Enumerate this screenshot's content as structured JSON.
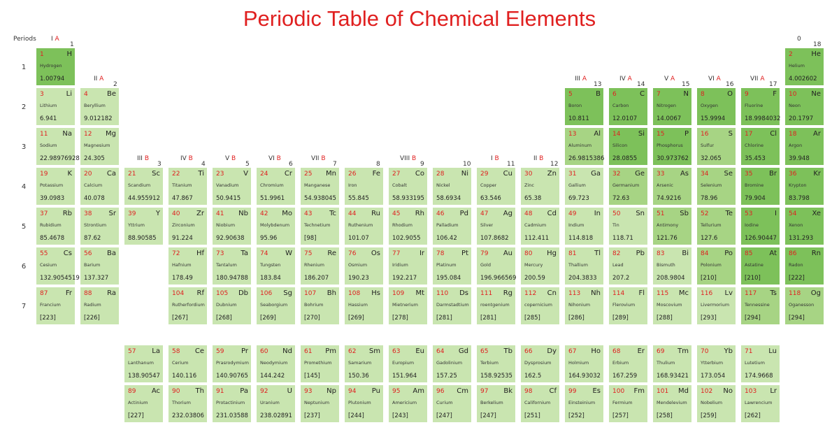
{
  "title": "Periodic Table of Chemical Elements",
  "periods_label": "Periods",
  "colors": {
    "light": "#c9e5b0",
    "medium": "#a7d484",
    "dark": "#7dc15a",
    "title": "#e02020"
  },
  "group_labels": [
    {
      "roman": "I",
      "suffix": "A",
      "number": "1"
    },
    {
      "roman": "II",
      "suffix": "A",
      "number": "2"
    },
    {
      "roman": "III",
      "suffix": "B",
      "number": "3"
    },
    {
      "roman": "IV",
      "suffix": "B",
      "number": "4"
    },
    {
      "roman": "V",
      "suffix": "B",
      "number": "5"
    },
    {
      "roman": "VI",
      "suffix": "B",
      "number": "6"
    },
    {
      "roman": "VII",
      "suffix": "B",
      "number": "7"
    },
    {
      "roman": "",
      "suffix": "",
      "number": "8"
    },
    {
      "roman": "VIII",
      "suffix": "B",
      "number": "9"
    },
    {
      "roman": "",
      "suffix": "",
      "number": "10"
    },
    {
      "roman": "I",
      "suffix": "B",
      "number": "11"
    },
    {
      "roman": "II",
      "suffix": "B",
      "number": "12"
    },
    {
      "roman": "III",
      "suffix": "A",
      "number": "13"
    },
    {
      "roman": "IV",
      "suffix": "A",
      "number": "14"
    },
    {
      "roman": "V",
      "suffix": "A",
      "number": "15"
    },
    {
      "roman": "VI",
      "suffix": "A",
      "number": "16"
    },
    {
      "roman": "VII",
      "suffix": "A",
      "number": "17"
    },
    {
      "roman": "0",
      "suffix": "",
      "number": "18"
    }
  ],
  "periods": [
    "1",
    "2",
    "3",
    "4",
    "5",
    "6",
    "7"
  ],
  "elements": [
    {
      "z": "1",
      "sym": "H",
      "name": "Hydrogen",
      "mass": "1.00794",
      "shade": "dark"
    },
    {
      "z": "2",
      "sym": "He",
      "name": "Helium",
      "mass": "4.002602",
      "shade": "dark"
    },
    {
      "z": "3",
      "sym": "Li",
      "name": "Lithium",
      "mass": "6.941",
      "shade": "light"
    },
    {
      "z": "4",
      "sym": "Be",
      "name": "Beryllium",
      "mass": "9.012182",
      "shade": "light"
    },
    {
      "z": "5",
      "sym": "B",
      "name": "Boron",
      "mass": "10.811",
      "shade": "dark"
    },
    {
      "z": "6",
      "sym": "C",
      "name": "Carbon",
      "mass": "12.0107",
      "shade": "dark"
    },
    {
      "z": "7",
      "sym": "N",
      "name": "Nitrogen",
      "mass": "14.0067",
      "shade": "dark"
    },
    {
      "z": "8",
      "sym": "O",
      "name": "Oxygen",
      "mass": "15.9994",
      "shade": "dark"
    },
    {
      "z": "9",
      "sym": "F",
      "name": "Fluorine",
      "mass": "18.9984032",
      "shade": "dark"
    },
    {
      "z": "10",
      "sym": "Ne",
      "name": "Neon",
      "mass": "20.1797",
      "shade": "dark"
    },
    {
      "z": "11",
      "sym": "Na",
      "name": "Sodium",
      "mass": "22.98976928",
      "shade": "light"
    },
    {
      "z": "12",
      "sym": "Mg",
      "name": "Magnesium",
      "mass": "24.305",
      "shade": "light"
    },
    {
      "z": "13",
      "sym": "Al",
      "name": "Aluminum",
      "mass": "26.9815386",
      "shade": "medium"
    },
    {
      "z": "14",
      "sym": "Si",
      "name": "Silicon",
      "mass": "28.0855",
      "shade": "dark"
    },
    {
      "z": "15",
      "sym": "P",
      "name": "Phosphorus",
      "mass": "30.973762",
      "shade": "dark"
    },
    {
      "z": "16",
      "sym": "S",
      "name": "Sulfur",
      "mass": "32.065",
      "shade": "medium"
    },
    {
      "z": "17",
      "sym": "Cl",
      "name": "Chlorine",
      "mass": "35.453",
      "shade": "dark"
    },
    {
      "z": "18",
      "sym": "Ar",
      "name": "Argon",
      "mass": "39.948",
      "shade": "dark"
    },
    {
      "z": "19",
      "sym": "K",
      "name": "Potassium",
      "mass": "39.0983",
      "shade": "light"
    },
    {
      "z": "20",
      "sym": "Ca",
      "name": "Calcium",
      "mass": "40.078",
      "shade": "light"
    },
    {
      "z": "21",
      "sym": "Sc",
      "name": "Scandium",
      "mass": "44.955912",
      "shade": "light"
    },
    {
      "z": "22",
      "sym": "Ti",
      "name": "Titanium",
      "mass": "47.867",
      "shade": "light"
    },
    {
      "z": "23",
      "sym": "V",
      "name": "Vanadium",
      "mass": "50.9415",
      "shade": "light"
    },
    {
      "z": "24",
      "sym": "Cr",
      "name": "Chromium",
      "mass": "51.9961",
      "shade": "light"
    },
    {
      "z": "25",
      "sym": "Mn",
      "name": "Manganese",
      "mass": "54.938045",
      "shade": "light"
    },
    {
      "z": "26",
      "sym": "Fe",
      "name": "Iron",
      "mass": "55.845",
      "shade": "light"
    },
    {
      "z": "27",
      "sym": "Co",
      "name": "Cobalt",
      "mass": "58.933195",
      "shade": "light"
    },
    {
      "z": "28",
      "sym": "Ni",
      "name": "Nickel",
      "mass": "58.6934",
      "shade": "light"
    },
    {
      "z": "29",
      "sym": "Cu",
      "name": "Copper",
      "mass": "63.546",
      "shade": "light"
    },
    {
      "z": "30",
      "sym": "Zn",
      "name": "Zinc",
      "mass": "65.38",
      "shade": "light"
    },
    {
      "z": "31",
      "sym": "Ga",
      "name": "Gallium",
      "mass": "69.723",
      "shade": "light"
    },
    {
      "z": "32",
      "sym": "Ge",
      "name": "Germanium",
      "mass": "72.63",
      "shade": "medium"
    },
    {
      "z": "33",
      "sym": "As",
      "name": "Arsenic",
      "mass": "74.9216",
      "shade": "medium"
    },
    {
      "z": "34",
      "sym": "Se",
      "name": "Selenium",
      "mass": "78.96",
      "shade": "medium"
    },
    {
      "z": "35",
      "sym": "Br",
      "name": "Bromine",
      "mass": "79.904",
      "shade": "dark"
    },
    {
      "z": "36",
      "sym": "Kr",
      "name": "Krypton",
      "mass": "83.798",
      "shade": "dark"
    },
    {
      "z": "37",
      "sym": "Rb",
      "name": "Rubidium",
      "mass": "85.4678",
      "shade": "light"
    },
    {
      "z": "38",
      "sym": "Sr",
      "name": "Strontium",
      "mass": "87.62",
      "shade": "light"
    },
    {
      "z": "39",
      "sym": "Y",
      "name": "Yttrium",
      "mass": "88.90585",
      "shade": "light"
    },
    {
      "z": "40",
      "sym": "Zr",
      "name": "Zirconium",
      "mass": "91.224",
      "shade": "light"
    },
    {
      "z": "41",
      "sym": "Nb",
      "name": "Niobium",
      "mass": "92.90638",
      "shade": "light"
    },
    {
      "z": "42",
      "sym": "Mo",
      "name": "Molybdenum",
      "mass": "95.96",
      "shade": "light"
    },
    {
      "z": "43",
      "sym": "Tc",
      "name": "Technetium",
      "mass": "[98]",
      "shade": "light"
    },
    {
      "z": "44",
      "sym": "Ru",
      "name": "Ruthenium",
      "mass": "101.07",
      "shade": "light"
    },
    {
      "z": "45",
      "sym": "Rh",
      "name": "Rhodium",
      "mass": "102.9055",
      "shade": "light"
    },
    {
      "z": "46",
      "sym": "Pd",
      "name": "Palladium",
      "mass": "106.42",
      "shade": "light"
    },
    {
      "z": "47",
      "sym": "Ag",
      "name": "Silver",
      "mass": "107.8682",
      "shade": "light"
    },
    {
      "z": "48",
      "sym": "Cd",
      "name": "Cadmium",
      "mass": "112.411",
      "shade": "light"
    },
    {
      "z": "49",
      "sym": "In",
      "name": "Indium",
      "mass": "114.818",
      "shade": "light"
    },
    {
      "z": "50",
      "sym": "Sn",
      "name": "Tin",
      "mass": "118.71",
      "shade": "light"
    },
    {
      "z": "51",
      "sym": "Sb",
      "name": "Antimony",
      "mass": "121.76",
      "shade": "medium"
    },
    {
      "z": "52",
      "sym": "Te",
      "name": "Tellurium",
      "mass": "127.6",
      "shade": "medium"
    },
    {
      "z": "53",
      "sym": "I",
      "name": "Iodine",
      "mass": "126.90447",
      "shade": "dark"
    },
    {
      "z": "54",
      "sym": "Xe",
      "name": "Xenon",
      "mass": "131.293",
      "shade": "dark"
    },
    {
      "z": "55",
      "sym": "Cs",
      "name": "Cesium",
      "mass": "132.9054519",
      "shade": "light"
    },
    {
      "z": "56",
      "sym": "Ba",
      "name": "Barium",
      "mass": "137.327",
      "shade": "light"
    },
    {
      "z": "72",
      "sym": "Hf",
      "name": "Hafnium",
      "mass": "178.49",
      "shade": "light"
    },
    {
      "z": "73",
      "sym": "Ta",
      "name": "Tantalum",
      "mass": "180.94788",
      "shade": "light"
    },
    {
      "z": "74",
      "sym": "W",
      "name": "Tungsten",
      "mass": "183.84",
      "shade": "light"
    },
    {
      "z": "75",
      "sym": "Re",
      "name": "Rhenium",
      "mass": "186.207",
      "shade": "light"
    },
    {
      "z": "76",
      "sym": "Os",
      "name": "Osmium",
      "mass": "190.23",
      "shade": "light"
    },
    {
      "z": "77",
      "sym": "Ir",
      "name": "Iridium",
      "mass": "192.217",
      "shade": "light"
    },
    {
      "z": "78",
      "sym": "Pt",
      "name": "Platinum",
      "mass": "195.084",
      "shade": "light"
    },
    {
      "z": "79",
      "sym": "Au",
      "name": "Gold",
      "mass": "196.966569",
      "shade": "light"
    },
    {
      "z": "80",
      "sym": "Hg",
      "name": "Mercury",
      "mass": "200.59",
      "shade": "light"
    },
    {
      "z": "81",
      "sym": "Tl",
      "name": "Thallium",
      "mass": "204.3833",
      "shade": "light"
    },
    {
      "z": "82",
      "sym": "Pb",
      "name": "Lead",
      "mass": "207.2",
      "shade": "light"
    },
    {
      "z": "83",
      "sym": "Bi",
      "name": "Bismuth",
      "mass": "208.9804",
      "shade": "light"
    },
    {
      "z": "84",
      "sym": "Po",
      "name": "Polonium",
      "mass": "[210]",
      "shade": "medium"
    },
    {
      "z": "85",
      "sym": "At",
      "name": "Astatine",
      "mass": "[210]",
      "shade": "dark"
    },
    {
      "z": "86",
      "sym": "Rn",
      "name": "Radon",
      "mass": "[222]",
      "shade": "dark"
    },
    {
      "z": "87",
      "sym": "Fr",
      "name": "Francium",
      "mass": "[223]",
      "shade": "light"
    },
    {
      "z": "88",
      "sym": "Ra",
      "name": "Radium",
      "mass": "[226]",
      "shade": "light"
    },
    {
      "z": "104",
      "sym": "Rf",
      "name": "Rutherfordium",
      "mass": "[267]",
      "shade": "light"
    },
    {
      "z": "105",
      "sym": "Db",
      "name": "Dubnium",
      "mass": "[268]",
      "shade": "light"
    },
    {
      "z": "106",
      "sym": "Sg",
      "name": "Seaborgium",
      "mass": "[269]",
      "shade": "light"
    },
    {
      "z": "107",
      "sym": "Bh",
      "name": "Bohrium",
      "mass": "[270]",
      "shade": "light"
    },
    {
      "z": "108",
      "sym": "Hs",
      "name": "Hassium",
      "mass": "[269]",
      "shade": "light"
    },
    {
      "z": "109",
      "sym": "Mt",
      "name": "Mietnerium",
      "mass": "[278]",
      "shade": "light"
    },
    {
      "z": "110",
      "sym": "Ds",
      "name": "Darmstadtium",
      "mass": "[281]",
      "shade": "light"
    },
    {
      "z": "111",
      "sym": "Rg",
      "name": "roentgenium",
      "mass": "[281]",
      "shade": "light"
    },
    {
      "z": "112",
      "sym": "Cn",
      "name": "copernicium",
      "mass": "[285]",
      "shade": "light"
    },
    {
      "z": "113",
      "sym": "Nh",
      "name": "Nihonium",
      "mass": "[286]",
      "shade": "light"
    },
    {
      "z": "114",
      "sym": "Fl",
      "name": "Flerovium",
      "mass": "[289]",
      "shade": "light"
    },
    {
      "z": "115",
      "sym": "Mc",
      "name": "Moscovium",
      "mass": "[288]",
      "shade": "light"
    },
    {
      "z": "116",
      "sym": "Lv",
      "name": "Livermorium",
      "mass": "[293]",
      "shade": "light"
    },
    {
      "z": "117",
      "sym": "Ts",
      "name": "Tennessine",
      "mass": "[294]",
      "shade": "medium"
    },
    {
      "z": "118",
      "sym": "Og",
      "name": "Oganesson",
      "mass": "[294]",
      "shade": "medium"
    },
    {
      "z": "57",
      "sym": "La",
      "name": "Lanthanum",
      "mass": "138.90547",
      "shade": "light"
    },
    {
      "z": "58",
      "sym": "Ce",
      "name": "Cerium",
      "mass": "140.116",
      "shade": "light"
    },
    {
      "z": "59",
      "sym": "Pr",
      "name": "Prasrodymium",
      "mass": "140.90765",
      "shade": "light"
    },
    {
      "z": "60",
      "sym": "Nd",
      "name": "Neodymium",
      "mass": "144.242",
      "shade": "light"
    },
    {
      "z": "61",
      "sym": "Pm",
      "name": "Promethium",
      "mass": "[145]",
      "shade": "light"
    },
    {
      "z": "62",
      "sym": "Sm",
      "name": "Samarium",
      "mass": "150.36",
      "shade": "light"
    },
    {
      "z": "63",
      "sym": "Eu",
      "name": "Europium",
      "mass": "151.964",
      "shade": "light"
    },
    {
      "z": "64",
      "sym": "Gd",
      "name": "Gadolinium",
      "mass": "157.25",
      "shade": "light"
    },
    {
      "z": "65",
      "sym": "Tb",
      "name": "Terbium",
      "mass": "158.92535",
      "shade": "light"
    },
    {
      "z": "66",
      "sym": "Dy",
      "name": "Dysprosium",
      "mass": "162.5",
      "shade": "light"
    },
    {
      "z": "67",
      "sym": "Ho",
      "name": "Holmium",
      "mass": "164.93032",
      "shade": "light"
    },
    {
      "z": "68",
      "sym": "Er",
      "name": "Erbium",
      "mass": "167.259",
      "shade": "light"
    },
    {
      "z": "69",
      "sym": "Tm",
      "name": "Thulium",
      "mass": "168.93421",
      "shade": "light"
    },
    {
      "z": "70",
      "sym": "Yb",
      "name": "Ytterbium",
      "mass": "173.054",
      "shade": "light"
    },
    {
      "z": "71",
      "sym": "Lu",
      "name": "Lutetium",
      "mass": "174.9668",
      "shade": "light"
    },
    {
      "z": "89",
      "sym": "Ac",
      "name": "Actinium",
      "mass": "[227]",
      "shade": "light"
    },
    {
      "z": "90",
      "sym": "Th",
      "name": "Thorium",
      "mass": "232.03806",
      "shade": "light"
    },
    {
      "z": "91",
      "sym": "Pa",
      "name": "Protactinium",
      "mass": "231.03588",
      "shade": "light"
    },
    {
      "z": "92",
      "sym": "U",
      "name": "Uranium",
      "mass": "238.02891",
      "shade": "light"
    },
    {
      "z": "93",
      "sym": "Np",
      "name": "Neptunium",
      "mass": "[237]",
      "shade": "light"
    },
    {
      "z": "94",
      "sym": "Pu",
      "name": "Plutonium",
      "mass": "[244]",
      "shade": "light"
    },
    {
      "z": "95",
      "sym": "Am",
      "name": "Americium",
      "mass": "[243]",
      "shade": "light"
    },
    {
      "z": "96",
      "sym": "Cm",
      "name": "Curium",
      "mass": "[247]",
      "shade": "light"
    },
    {
      "z": "97",
      "sym": "Bk",
      "name": "Berkelium",
      "mass": "[247]",
      "shade": "light"
    },
    {
      "z": "98",
      "sym": "Cf",
      "name": "Californium",
      "mass": "[251]",
      "shade": "light"
    },
    {
      "z": "99",
      "sym": "Es",
      "name": "Einsteinium",
      "mass": "[252]",
      "shade": "light"
    },
    {
      "z": "100",
      "sym": "Fm",
      "name": "Fermium",
      "mass": "[257]",
      "shade": "light"
    },
    {
      "z": "101",
      "sym": "Md",
      "name": "Mendelevium",
      "mass": "[258]",
      "shade": "light"
    },
    {
      "z": "102",
      "sym": "No",
      "name": "Nobelium",
      "mass": "[259]",
      "shade": "light"
    },
    {
      "z": "103",
      "sym": "Lr",
      "name": "Lawrencium",
      "mass": "[262]",
      "shade": "light"
    }
  ]
}
